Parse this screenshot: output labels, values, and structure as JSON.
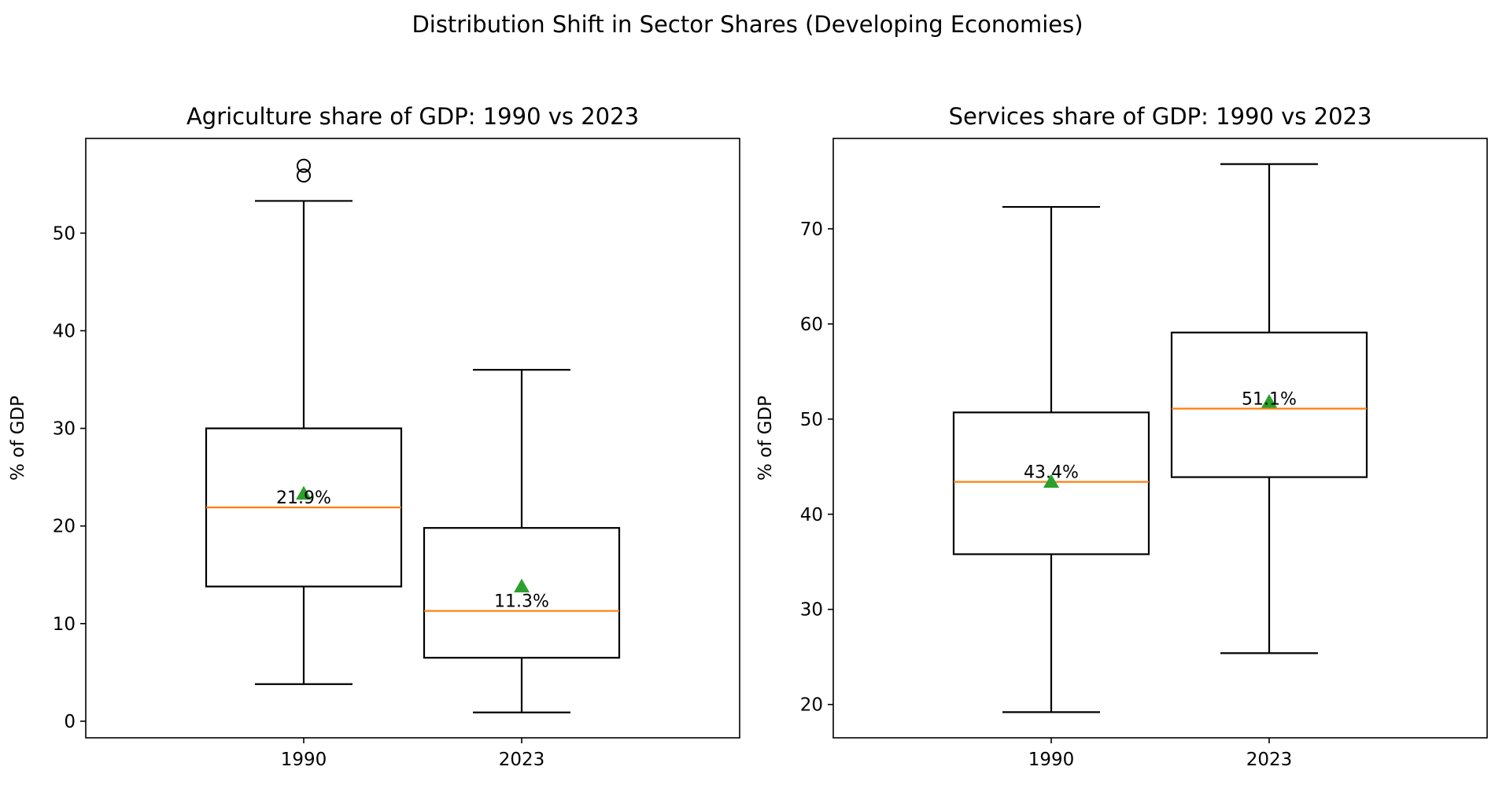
{
  "suptitle": "Distribution Shift in Sector Shares (Developing Economies)",
  "colors": {
    "box": "#000000",
    "median": "#ff7f0e",
    "mean_marker": "#2ca02c"
  },
  "chart_data": [
    {
      "type": "box",
      "title": "Agriculture share of GDP: 1990 vs 2023",
      "xlabel": "",
      "ylabel": "% of GDP",
      "categories": [
        "1990",
        "2023"
      ],
      "ylim": [
        -1.7,
        59.7
      ],
      "yticks": [
        0,
        10,
        20,
        30,
        40,
        50
      ],
      "boxes": [
        {
          "category": "1990",
          "whisker_low": 3.8,
          "q1": 13.8,
          "median": 21.9,
          "q3": 30.0,
          "whisker_high": 53.3,
          "mean": 23.3,
          "outliers": [
            55.9,
            56.9
          ],
          "median_label": "21.9%"
        },
        {
          "category": "2023",
          "whisker_low": 0.9,
          "q1": 6.5,
          "median": 11.3,
          "q3": 19.8,
          "whisker_high": 36.0,
          "mean": 13.8,
          "outliers": [],
          "median_label": "11.3%"
        }
      ]
    },
    {
      "type": "box",
      "title": "Services share of GDP: 1990 vs 2023",
      "xlabel": "",
      "ylabel": "% of GDP",
      "categories": [
        "1990",
        "2023"
      ],
      "ylim": [
        16.5,
        79.5
      ],
      "yticks": [
        20,
        30,
        40,
        50,
        60,
        70
      ],
      "boxes": [
        {
          "category": "1990",
          "whisker_low": 19.2,
          "q1": 35.8,
          "median": 43.4,
          "q3": 50.7,
          "whisker_high": 72.3,
          "mean": 43.4,
          "outliers": [],
          "median_label": "43.4%"
        },
        {
          "category": "2023",
          "whisker_low": 25.4,
          "q1": 43.9,
          "median": 51.1,
          "q3": 59.1,
          "whisker_high": 76.8,
          "mean": 51.8,
          "outliers": [],
          "median_label": "51.1%"
        }
      ]
    }
  ]
}
